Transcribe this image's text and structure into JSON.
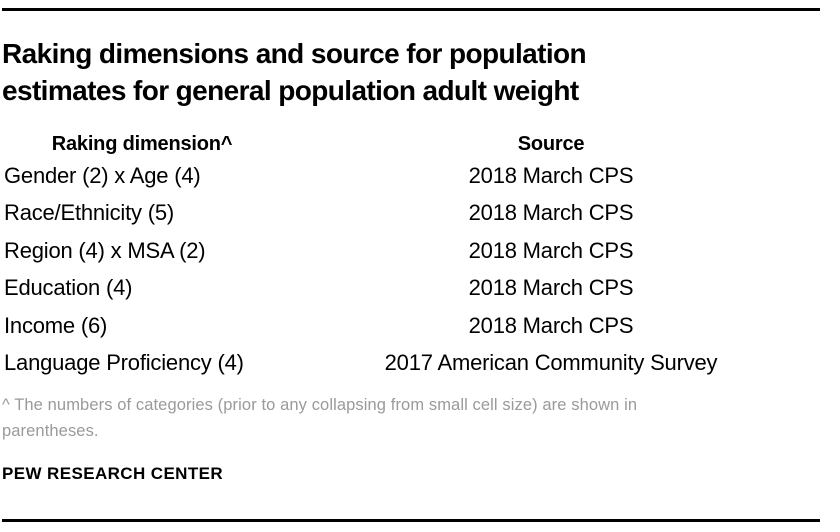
{
  "title": "Raking dimensions and source for population estimates for general population adult weight",
  "table": {
    "header": {
      "dimension": "Raking dimension^",
      "source": "Source"
    },
    "rows": [
      {
        "dimension": "Gender (2) x Age (4)",
        "source": "2018 March CPS"
      },
      {
        "dimension": "Race/Ethnicity (5)",
        "source": "2018 March CPS"
      },
      {
        "dimension": "Region (4) x MSA (2)",
        "source": "2018 March CPS"
      },
      {
        "dimension": "Education (4)",
        "source": "2018 March CPS"
      },
      {
        "dimension": "Income (6)",
        "source": "2018 March CPS"
      },
      {
        "dimension": "Language Proficiency (4)",
        "source": "2017 American Community Survey"
      }
    ]
  },
  "footnote": "^ The numbers of categories (prior to any collapsing from small cell size) are shown in parentheses.",
  "branding": "PEW RESEARCH CENTER",
  "colors": {
    "text": "#000000",
    "footnote_gray": "#9a9a9a",
    "rule": "#000000",
    "background": "#ffffff"
  }
}
